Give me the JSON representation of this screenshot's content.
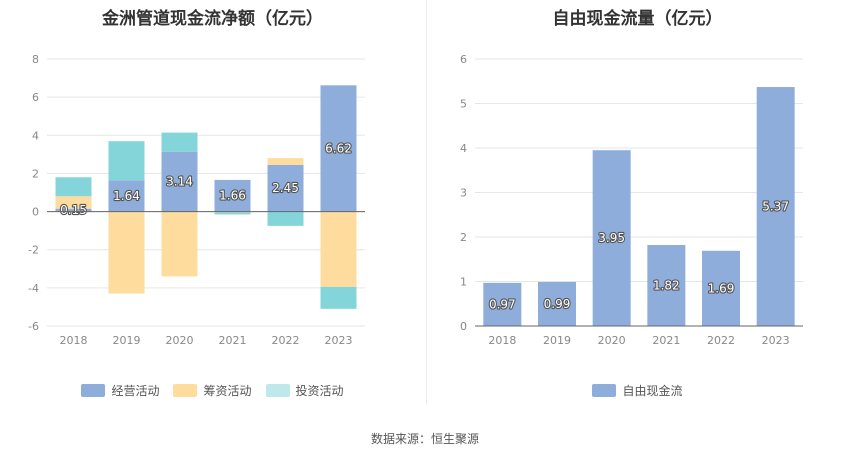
{
  "chart_data": [
    {
      "type": "bar",
      "stacked": true,
      "title": "金洲管道现金流净额（亿元）",
      "categories": [
        "2018",
        "2019",
        "2020",
        "2021",
        "2022",
        "2023"
      ],
      "ylim": [
        -6,
        8
      ],
      "yticks": [
        -6,
        -4,
        -2,
        0,
        2,
        4,
        6,
        8
      ],
      "grid": true,
      "legend_position": "bottom",
      "series": [
        {
          "name": "经营活动",
          "color": "#8eaddb",
          "values": [
            0.15,
            1.64,
            3.14,
            1.66,
            2.45,
            6.62
          ]
        },
        {
          "name": "筹资活动",
          "color": "#fedc9e",
          "values": [
            0.65,
            -4.3,
            -3.4,
            -0.05,
            0.35,
            -3.95
          ]
        },
        {
          "name": "投资活动",
          "color": "#84d5da",
          "values": [
            1.0,
            2.05,
            1.0,
            -0.1,
            -0.75,
            -1.15
          ]
        }
      ],
      "data_labels": [
        "0.15",
        "1.64",
        "3.14",
        "1.66",
        "2.45",
        "6.62"
      ]
    },
    {
      "type": "bar",
      "title": "自由现金流量（亿元）",
      "categories": [
        "2018",
        "2019",
        "2020",
        "2021",
        "2022",
        "2023"
      ],
      "ylim": [
        0,
        6
      ],
      "yticks": [
        0,
        1,
        2,
        3,
        4,
        5,
        6
      ],
      "grid": true,
      "legend_position": "bottom",
      "series": [
        {
          "name": "自由现金流",
          "color": "#8eaddb",
          "values": [
            0.97,
            0.99,
            3.95,
            1.82,
            1.69,
            5.37
          ]
        }
      ],
      "data_labels": [
        "0.97",
        "0.99",
        "3.95",
        "1.82",
        "1.69",
        "5.37"
      ]
    }
  ],
  "source": "数据来源：恒生聚源"
}
